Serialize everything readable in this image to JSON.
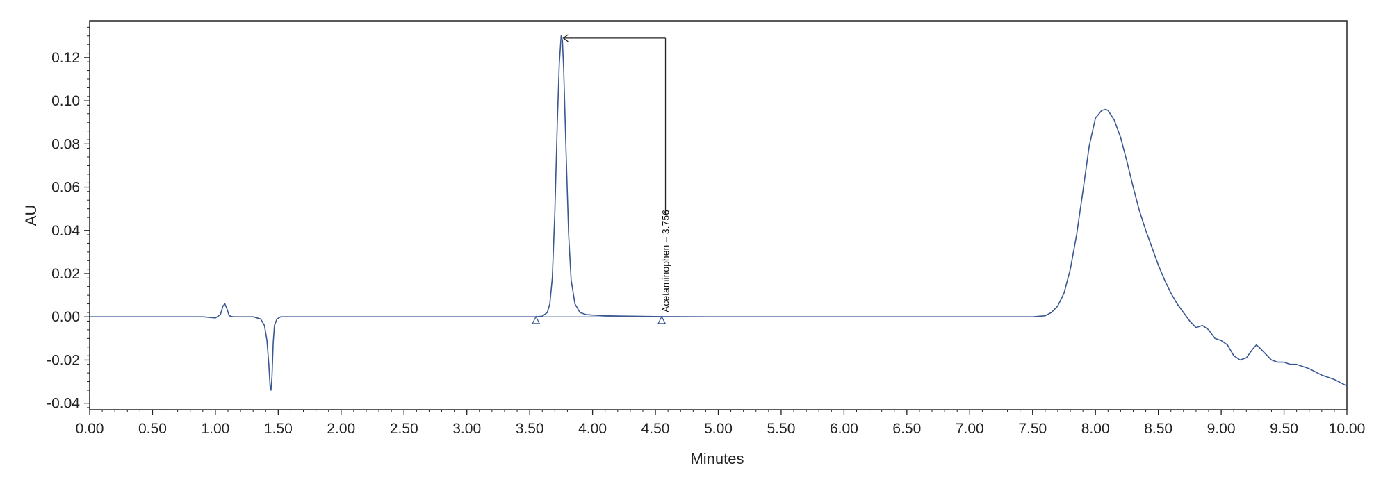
{
  "chart_data": {
    "type": "line",
    "title": "",
    "xlabel": "Minutes",
    "ylabel": "AU",
    "xlim": [
      0.0,
      10.0
    ],
    "ylim": [
      -0.043,
      0.137
    ],
    "x_ticks": [
      0,
      0.5,
      1,
      1.5,
      2,
      2.5,
      3,
      3.5,
      4,
      4.5,
      5,
      5.5,
      6,
      6.5,
      7,
      7.5,
      8,
      8.5,
      9,
      9.5,
      10
    ],
    "x_tick_labels": [
      "0.00",
      "0.50",
      "1.00",
      "1.50",
      "2.00",
      "2.50",
      "3.00",
      "3.50",
      "4.00",
      "4.50",
      "5.00",
      "5.50",
      "6.00",
      "6.50",
      "7.00",
      "7.50",
      "8.00",
      "8.50",
      "9.00",
      "9.50",
      "10.00"
    ],
    "y_ticks": [
      -0.04,
      -0.02,
      0.0,
      0.02,
      0.04,
      0.06,
      0.08,
      0.1,
      0.12
    ],
    "y_tick_labels": [
      "-0.04",
      "-0.02",
      "0.00",
      "0.02",
      "0.04",
      "0.06",
      "0.08",
      "0.10",
      "0.12"
    ],
    "grid": false,
    "line_color": "#3a5793",
    "series": [
      {
        "x": [
          0.0,
          0.6,
          0.9,
          1.0,
          1.04,
          1.06,
          1.075,
          1.09,
          1.11,
          1.14,
          1.2,
          1.3,
          1.36,
          1.39,
          1.41,
          1.425,
          1.435,
          1.442,
          1.45,
          1.46,
          1.47,
          1.49,
          1.52,
          1.6,
          1.7,
          1.8,
          2.0,
          2.5,
          3.0,
          3.4,
          3.55,
          3.6,
          3.64,
          3.66,
          3.68,
          3.7,
          3.72,
          3.735,
          3.75,
          3.76,
          3.77,
          3.79,
          3.81,
          3.83,
          3.86,
          3.9,
          3.95,
          4.0,
          4.1,
          4.3,
          4.55,
          5.0,
          6.0,
          7.0,
          7.5,
          7.6,
          7.65,
          7.7,
          7.75,
          7.8,
          7.85,
          7.9,
          7.95,
          8.0,
          8.05,
          8.08,
          8.1,
          8.15,
          8.2,
          8.25,
          8.3,
          8.35,
          8.4,
          8.45,
          8.5,
          8.55,
          8.6,
          8.65,
          8.7,
          8.75,
          8.8,
          8.85,
          8.9,
          8.95,
          9.0,
          9.05,
          9.1,
          9.15,
          9.2,
          9.25,
          9.28,
          9.3,
          9.35,
          9.4,
          9.45,
          9.5,
          9.55,
          9.6,
          9.7,
          9.8,
          9.9,
          10.0
        ],
        "y": [
          0.0,
          0.0,
          0.0,
          -0.0005,
          0.001,
          0.005,
          0.006,
          0.004,
          0.0005,
          0.0,
          0.0,
          0.0,
          -0.001,
          -0.004,
          -0.011,
          -0.022,
          -0.032,
          -0.034,
          -0.028,
          -0.012,
          -0.004,
          -0.001,
          0.0,
          0.0,
          0.0,
          0.0,
          0.0,
          0.0,
          0.0,
          0.0,
          0.0,
          0.0003,
          0.002,
          0.006,
          0.018,
          0.048,
          0.09,
          0.117,
          0.13,
          0.128,
          0.115,
          0.075,
          0.038,
          0.017,
          0.006,
          0.002,
          0.001,
          0.0008,
          0.0005,
          0.0003,
          0.0001,
          0.0,
          0.0,
          0.0,
          0.0,
          0.0005,
          0.002,
          0.005,
          0.011,
          0.022,
          0.038,
          0.058,
          0.079,
          0.092,
          0.0955,
          0.096,
          0.0955,
          0.091,
          0.083,
          0.072,
          0.06,
          0.049,
          0.04,
          0.032,
          0.024,
          0.017,
          0.011,
          0.006,
          0.002,
          -0.002,
          -0.005,
          -0.004,
          -0.006,
          -0.01,
          -0.011,
          -0.013,
          -0.018,
          -0.02,
          -0.019,
          -0.015,
          -0.013,
          -0.014,
          -0.017,
          -0.02,
          -0.021,
          -0.021,
          -0.022,
          -0.022,
          -0.024,
          -0.027,
          -0.029,
          -0.032
        ]
      }
    ],
    "baseline_segment": {
      "x": [
        3.55,
        4.55
      ],
      "y": [
        0.0,
        0.0
      ]
    },
    "integration_markers": [
      {
        "x": 3.55,
        "y": -0.0015
      },
      {
        "x": 4.55,
        "y": -0.0015
      }
    ],
    "annotations": [
      {
        "text": "Acetaminophen – 3.756",
        "peak_x": 3.756,
        "peak_y": 0.13,
        "label_x": 4.58,
        "label_bottom_y": 0.002,
        "connector_top_y": 0.129
      }
    ]
  }
}
